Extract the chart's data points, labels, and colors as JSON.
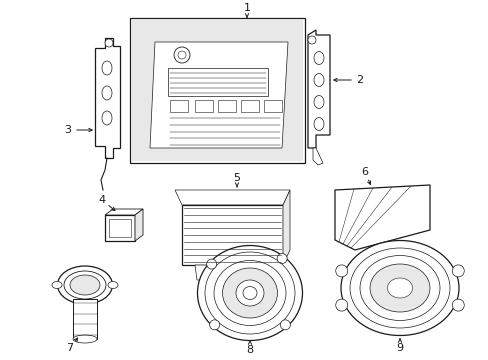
{
  "bg_color": "#ffffff",
  "line_color": "#1a1a1a",
  "fill_light": "#e8e8e8",
  "figsize": [
    4.89,
    3.6
  ],
  "dpi": 100
}
